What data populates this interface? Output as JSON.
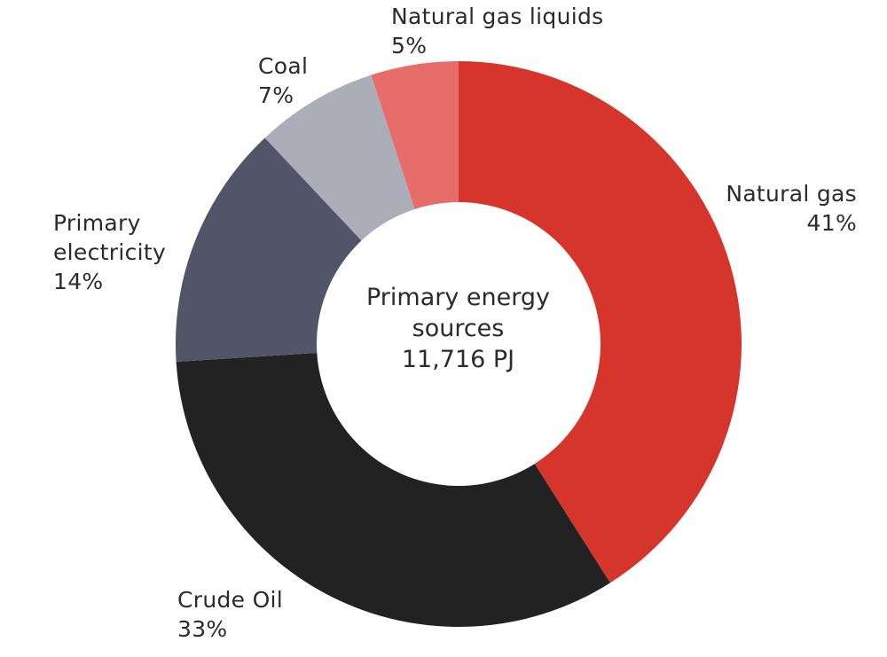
{
  "chart_data": {
    "type": "pie",
    "variant": "donut",
    "center_label": {
      "line1": "Primary energy",
      "line2": "sources",
      "line3": "11,716 PJ"
    },
    "slices": [
      {
        "key": "natural_gas",
        "name": "Natural gas",
        "value": 41,
        "label": "41%",
        "color": "#d5352b"
      },
      {
        "key": "crude_oil",
        "name": "Crude Oil",
        "value": 33,
        "label": "33%",
        "color": "#222222"
      },
      {
        "key": "primary_electricity",
        "name_lines": [
          "Primary",
          "electricity"
        ],
        "value": 14,
        "label": "14%",
        "color": "#525468"
      },
      {
        "key": "coal",
        "name": "Coal",
        "value": 7,
        "label": "7%",
        "color": "#abadb9"
      },
      {
        "key": "natural_gas_liquids",
        "name": "Natural gas liquids",
        "value": 5,
        "label": "5%",
        "color": "#e66d69"
      }
    ]
  }
}
